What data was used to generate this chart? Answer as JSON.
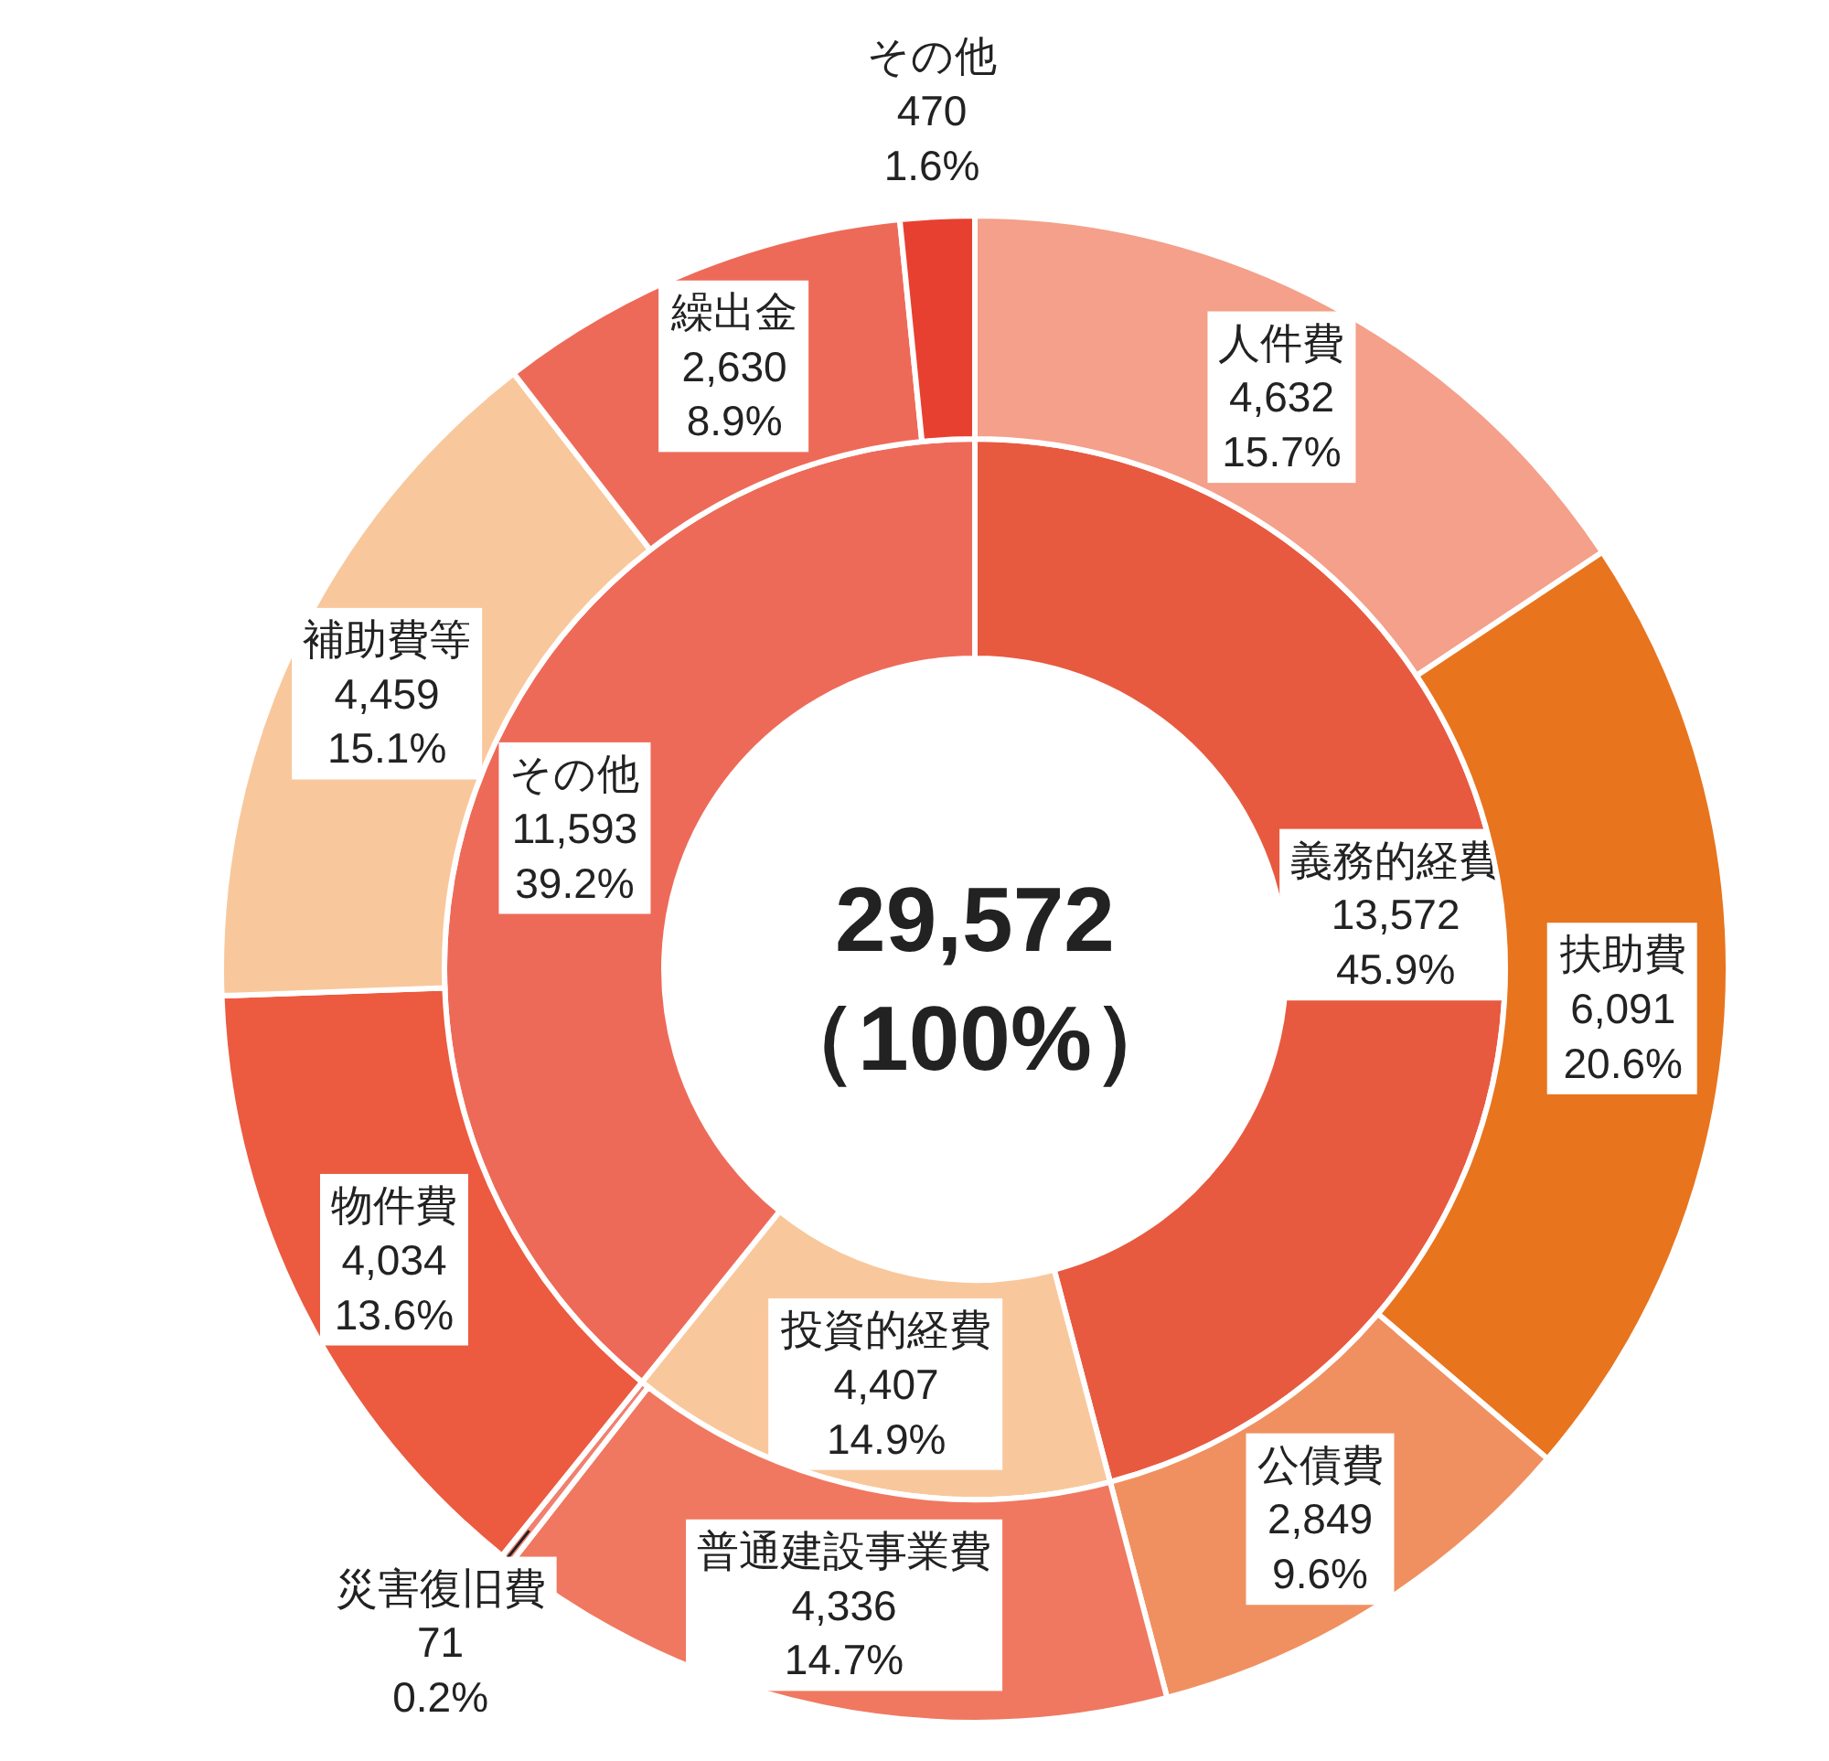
{
  "chart_data": [
    {
      "type": "donut",
      "categories": [
        "義務的経費",
        "投資的経費",
        "その他"
      ],
      "values": [
        13572,
        4407,
        11593
      ],
      "colors": [
        "#e85a40",
        "#f8c89c",
        "#ee6a58"
      ],
      "value_labels": [
        "13,572\n45.9%",
        "4,407\n14.9%",
        "11,593\n39.2%"
      ],
      "annotations": [
        "29,572",
        "（100%）"
      ]
    },
    {
      "type": "donut",
      "categories": [
        "人件費",
        "扶助費",
        "公債費",
        "普通建設事業費",
        "災害復旧費",
        "物件費",
        "補助費等",
        "繰出金",
        "その他"
      ],
      "values": [
        4632,
        6091,
        2849,
        4336,
        71,
        4034,
        4459,
        2630,
        470
      ],
      "colors": [
        "#f4a08a",
        "#e8741e",
        "#f09060",
        "#f07860",
        "#f08070",
        "#ec5a40",
        "#f8c89c",
        "#ee6a58",
        "#e84030"
      ],
      "value_labels": [
        "4,632\n15.7%",
        "6,091\n20.6%",
        "2,849\n9.6%",
        "4,336\n14.7%",
        "71\n0.2%",
        "4,034\n13.6%",
        "4,459\n15.1%",
        "2,630\n8.9%",
        "470\n1.6%"
      ]
    }
  ]
}
